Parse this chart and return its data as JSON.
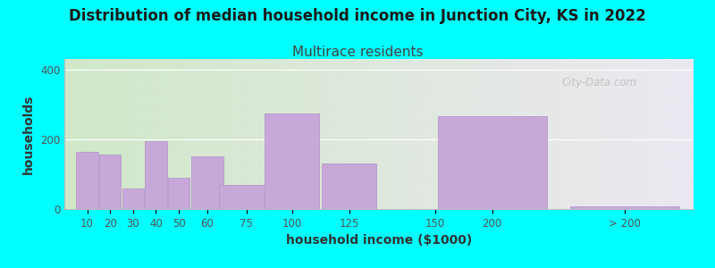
{
  "title": "Distribution of median household income in Junction City, KS in 2022",
  "subtitle": "Multirace residents",
  "xlabel": "household income ($1000)",
  "ylabel": "households",
  "bar_color": "#C8A8D8",
  "bar_edge_color": "#B090C8",
  "background_color": "#00FFFF",
  "plot_bg_left": "#D0E8C8",
  "plot_bg_right": "#EDE8F2",
  "categories": [
    "10",
    "20",
    "30",
    "40",
    "50",
    "60",
    "75",
    "100",
    "125",
    "150",
    "200",
    "> 200"
  ],
  "values": [
    165,
    155,
    60,
    195,
    90,
    150,
    70,
    275,
    130,
    0,
    265,
    8
  ],
  "bar_widths": [
    10,
    10,
    10,
    10,
    10,
    15,
    25,
    25,
    25,
    50,
    50,
    50
  ],
  "bar_lefts": [
    5,
    15,
    25,
    35,
    45,
    55,
    67,
    87,
    112,
    137,
    162,
    220
  ],
  "xtick_labels": [
    "10",
    "20",
    "30",
    "40",
    "50",
    "60",
    "75",
    "100",
    "125",
    "150",
    "200",
    "> 200"
  ],
  "yticks": [
    0,
    200,
    400
  ],
  "ylim": [
    0,
    430
  ],
  "xlim": [
    0,
    275
  ],
  "watermark": "City-Data.com",
  "title_fontsize": 12,
  "subtitle_fontsize": 11,
  "axis_label_fontsize": 10,
  "tick_fontsize": 8.5
}
